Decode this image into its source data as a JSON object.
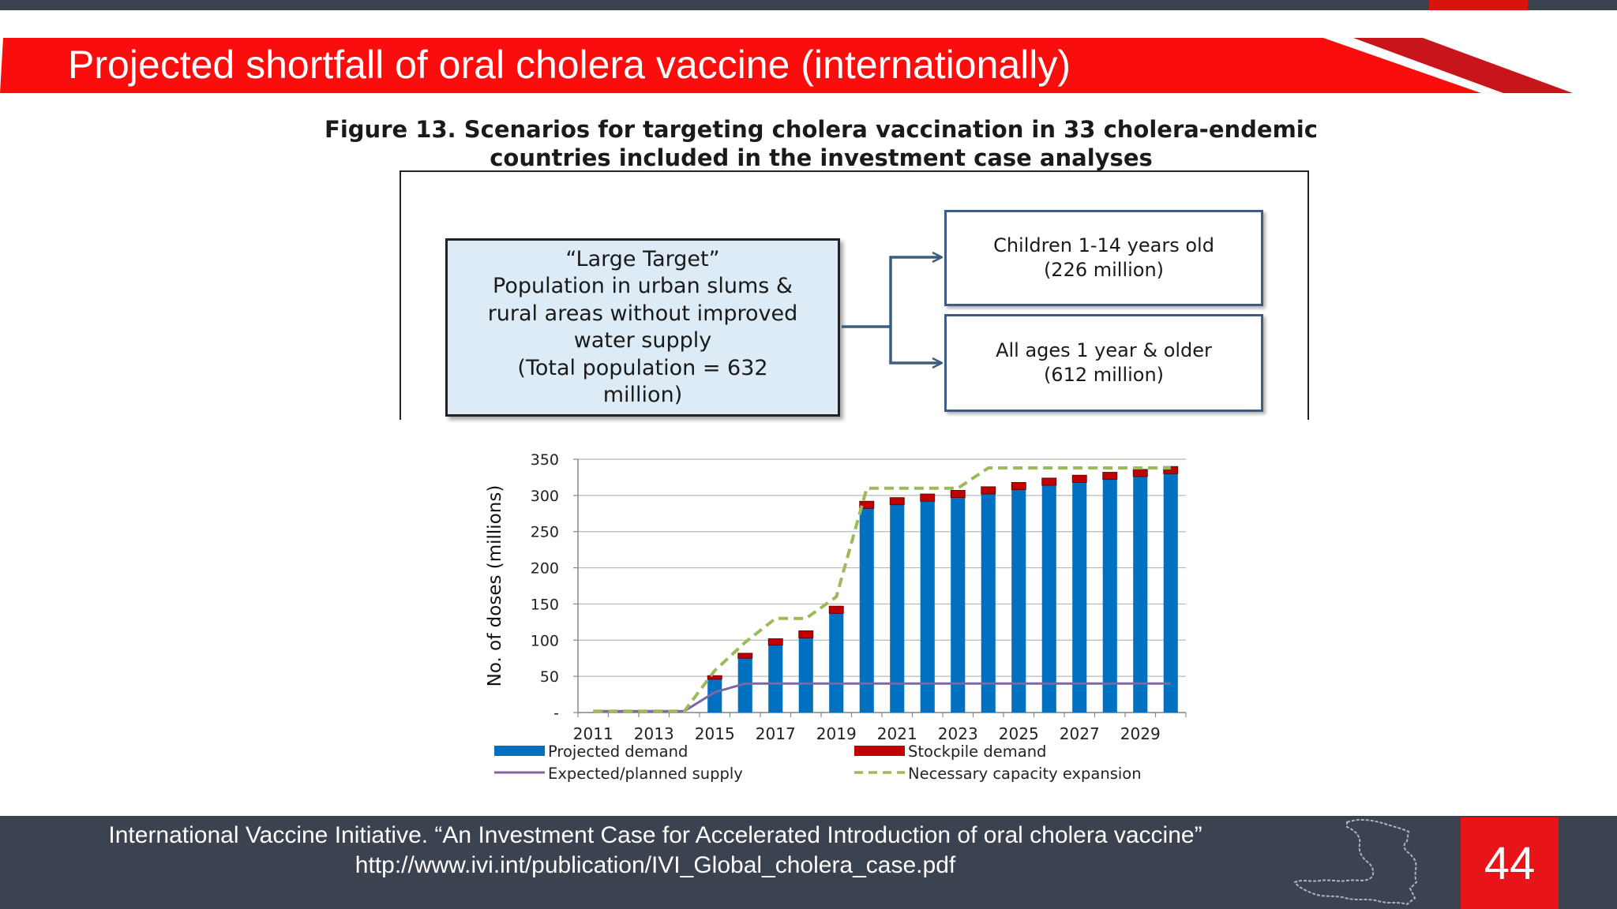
{
  "slide": {
    "title": "Projected shortfall of oral cholera vaccine (internationally)",
    "page_number": "44",
    "colors": {
      "accent_red": "#e8141a",
      "dark_bar": "#3b4350"
    }
  },
  "figure": {
    "title_line1": "Figure 13. Scenarios for targeting cholera vaccination in 33 cholera-endemic",
    "title_line2": "countries included in the investment case analyses"
  },
  "diagram": {
    "large_target": {
      "lines": [
        "“Large Target”",
        "Population in urban slums &",
        "rural areas without improved",
        "water supply",
        "(Total population = 632",
        "million)"
      ]
    },
    "children": {
      "lines": [
        "Children 1-14 years old",
        "(226 million)"
      ]
    },
    "all_ages": {
      "lines": [
        "All ages 1 year & older",
        "(612 million)"
      ]
    }
  },
  "chart_data": {
    "type": "bar",
    "ylabel": "No. of doses (millions)",
    "ylim": [
      0,
      350
    ],
    "yticks": [
      0,
      50,
      100,
      150,
      200,
      250,
      300,
      350
    ],
    "ytick_labels": [
      "-",
      "50",
      "100",
      "150",
      "200",
      "250",
      "300",
      "350"
    ],
    "categories": [
      2011,
      2012,
      2013,
      2014,
      2015,
      2016,
      2017,
      2018,
      2019,
      2020,
      2021,
      2022,
      2023,
      2024,
      2025,
      2026,
      2027,
      2028,
      2029,
      2030
    ],
    "xtick_labels": [
      "2011",
      "",
      "2013",
      "",
      "2015",
      "",
      "2017",
      "",
      "2019",
      "",
      "2021",
      "",
      "2023",
      "",
      "2025",
      "",
      "2027",
      "",
      "2029",
      ""
    ],
    "stacked": true,
    "series": [
      {
        "name": "Projected demand",
        "kind": "bar",
        "color": "#0070c0",
        "values": [
          0,
          0,
          0,
          0,
          46,
          75,
          93,
          103,
          137,
          282,
          287,
          292,
          297,
          302,
          308,
          314,
          318,
          322,
          326,
          330
        ]
      },
      {
        "name": "Stockpile demand",
        "kind": "bar",
        "color": "#c00000",
        "values": [
          0,
          0,
          0,
          0,
          5,
          7,
          9,
          10,
          10,
          10,
          10,
          10,
          10,
          10,
          10,
          10,
          10,
          10,
          10,
          10
        ]
      },
      {
        "name": "Expected/planned supply",
        "kind": "line",
        "color": "#7f65a8",
        "values": [
          2,
          2,
          2,
          2,
          28,
          40,
          40,
          40,
          40,
          40,
          40,
          40,
          40,
          40,
          40,
          40,
          40,
          40,
          40,
          40
        ]
      },
      {
        "name": "Necessary capacity expansion",
        "kind": "dashed-line",
        "color": "#9bbb59",
        "values": [
          2,
          2,
          2,
          2,
          58,
          97,
          130,
          130,
          160,
          310,
          310,
          310,
          310,
          338,
          338,
          338,
          338,
          338,
          338,
          338
        ]
      }
    ],
    "grid": true,
    "legend_position": "bottom"
  },
  "footer": {
    "line1": "International Vaccine Initiative. “An Investment Case for Accelerated Introduction of oral cholera vaccine”",
    "line2": "http://www.ivi.int/publication/IVI_Global_cholera_case.pdf"
  }
}
